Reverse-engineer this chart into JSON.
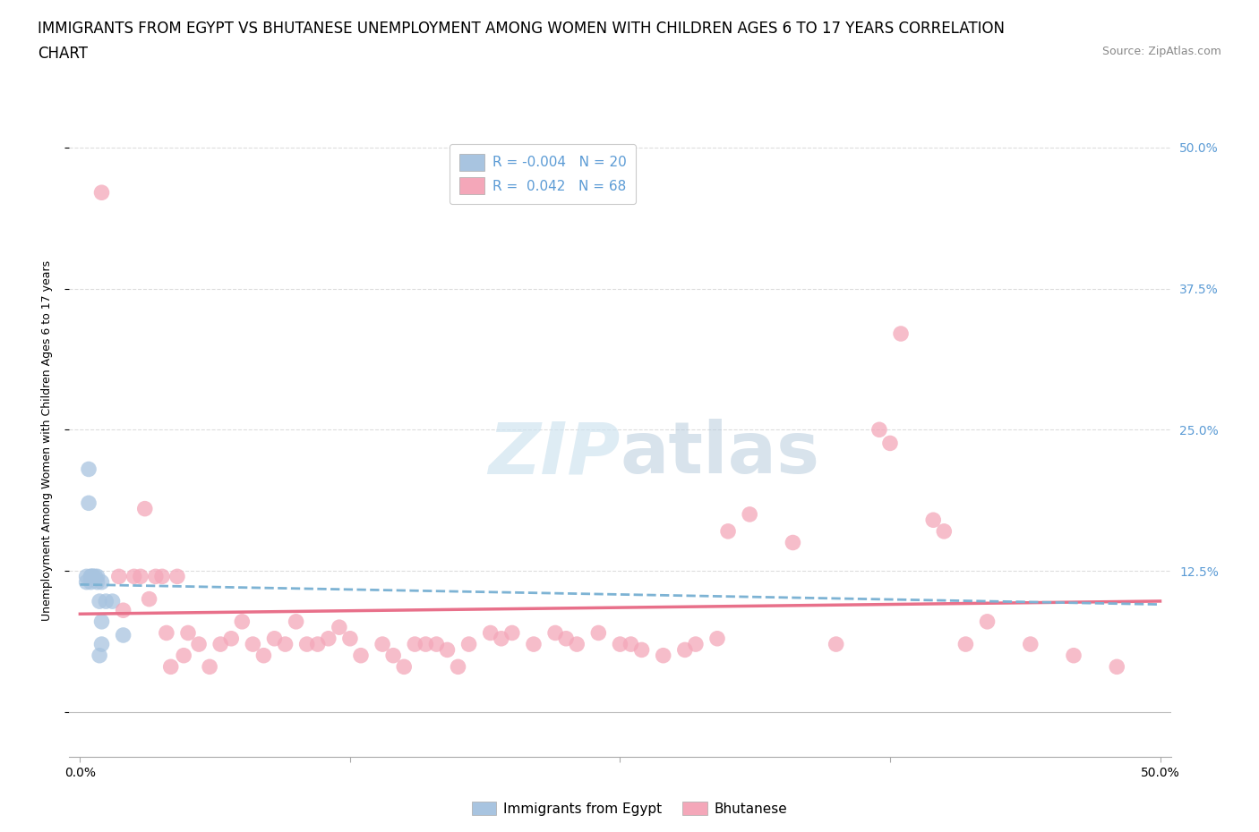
{
  "title_line1": "IMMIGRANTS FROM EGYPT VS BHUTANESE UNEMPLOYMENT AMONG WOMEN WITH CHILDREN AGES 6 TO 17 YEARS CORRELATION",
  "title_line2": "CHART",
  "source_text": "Source: ZipAtlas.com",
  "ylabel": "Unemployment Among Women with Children Ages 6 to 17 years",
  "xlim": [
    -0.005,
    0.505
  ],
  "ylim": [
    -0.04,
    0.52
  ],
  "egypt_R": -0.004,
  "egypt_N": 20,
  "bhutan_R": 0.042,
  "bhutan_N": 68,
  "egypt_color": "#a8c4e0",
  "bhutan_color": "#f4a7b9",
  "egypt_line_color": "#7db3d4",
  "bhutan_line_color": "#e8708a",
  "legend_border_color": "#cccccc",
  "grid_color": "#dddddd",
  "watermark_color": "#d0e4f0",
  "egypt_x": [
    0.003,
    0.004,
    0.004,
    0.005,
    0.005,
    0.006,
    0.006,
    0.007,
    0.008,
    0.008,
    0.009,
    0.009,
    0.01,
    0.01,
    0.01,
    0.012,
    0.015,
    0.02,
    0.003,
    0.005
  ],
  "egypt_y": [
    0.12,
    0.215,
    0.185,
    0.12,
    0.12,
    0.12,
    0.12,
    0.12,
    0.115,
    0.12,
    0.098,
    0.05,
    0.115,
    0.08,
    0.06,
    0.098,
    0.098,
    0.068,
    0.115,
    0.115
  ],
  "bhutan_x": [
    0.01,
    0.018,
    0.02,
    0.025,
    0.028,
    0.03,
    0.032,
    0.035,
    0.038,
    0.04,
    0.042,
    0.045,
    0.048,
    0.05,
    0.055,
    0.06,
    0.065,
    0.07,
    0.075,
    0.08,
    0.085,
    0.09,
    0.095,
    0.1,
    0.105,
    0.11,
    0.115,
    0.12,
    0.125,
    0.13,
    0.14,
    0.145,
    0.15,
    0.155,
    0.16,
    0.165,
    0.17,
    0.175,
    0.18,
    0.19,
    0.195,
    0.2,
    0.21,
    0.22,
    0.225,
    0.23,
    0.24,
    0.25,
    0.255,
    0.26,
    0.27,
    0.28,
    0.285,
    0.295,
    0.3,
    0.31,
    0.33,
    0.35,
    0.37,
    0.375,
    0.38,
    0.395,
    0.4,
    0.41,
    0.42,
    0.44,
    0.46,
    0.48
  ],
  "bhutan_y": [
    0.46,
    0.12,
    0.09,
    0.12,
    0.12,
    0.18,
    0.1,
    0.12,
    0.12,
    0.07,
    0.04,
    0.12,
    0.05,
    0.07,
    0.06,
    0.04,
    0.06,
    0.065,
    0.08,
    0.06,
    0.05,
    0.065,
    0.06,
    0.08,
    0.06,
    0.06,
    0.065,
    0.075,
    0.065,
    0.05,
    0.06,
    0.05,
    0.04,
    0.06,
    0.06,
    0.06,
    0.055,
    0.04,
    0.06,
    0.07,
    0.065,
    0.07,
    0.06,
    0.07,
    0.065,
    0.06,
    0.07,
    0.06,
    0.06,
    0.055,
    0.05,
    0.055,
    0.06,
    0.065,
    0.16,
    0.175,
    0.15,
    0.06,
    0.25,
    0.238,
    0.335,
    0.17,
    0.16,
    0.06,
    0.08,
    0.06,
    0.05,
    0.04
  ],
  "background_color": "#ffffff",
  "title_fontsize": 12,
  "axis_label_fontsize": 9,
  "tick_fontsize": 10,
  "legend_fontsize": 11
}
